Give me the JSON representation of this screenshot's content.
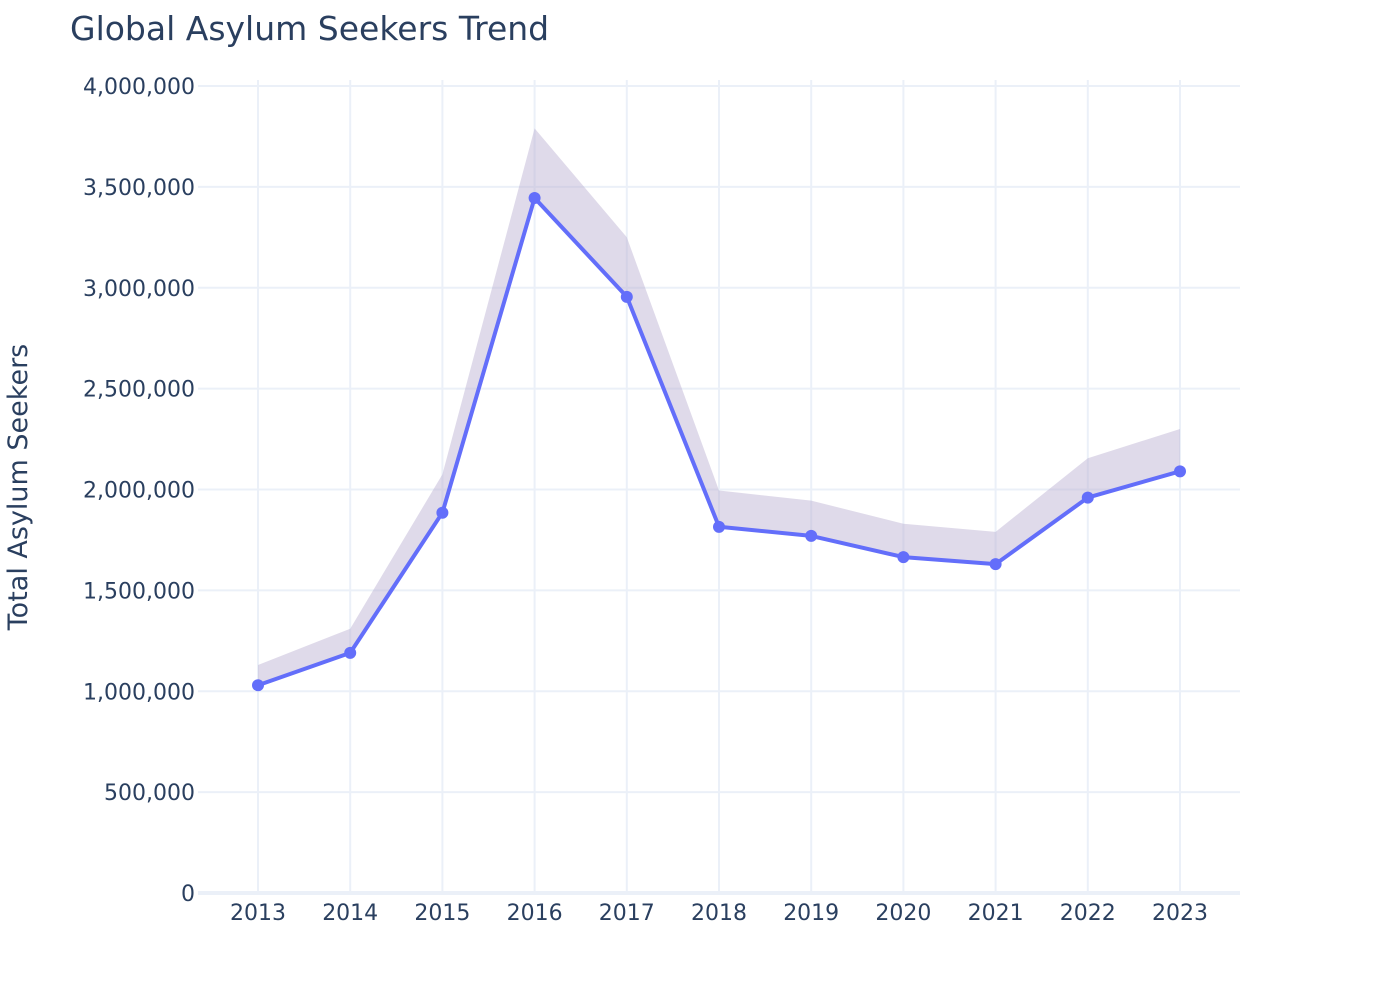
{
  "chart_data": {
    "type": "line",
    "title": "Global Asylum Seekers Trend",
    "xlabel": "",
    "ylabel": "Total Asylum Seekers",
    "x": [
      "2013",
      "2014",
      "2015",
      "2016",
      "2017",
      "2018",
      "2019",
      "2020",
      "2021",
      "2022",
      "2023"
    ],
    "ylim": [
      0,
      4000000
    ],
    "y_ticks": [
      0,
      500000,
      1000000,
      1500000,
      2000000,
      2500000,
      3000000,
      3500000,
      4000000
    ],
    "y_tick_labels": [
      "0",
      "500,000",
      "1,000,000",
      "1,500,000",
      "2,000,000",
      "2,500,000",
      "3,000,000",
      "3,500,000",
      "4,000,000"
    ],
    "grid": true,
    "legend": "none",
    "series": [
      {
        "values": [
          1030000,
          1190000,
          1885000,
          3445000,
          2955000,
          1815000,
          1770000,
          1665000,
          1630000,
          1960000,
          2090000
        ],
        "color": "#636efa",
        "markers": true
      }
    ],
    "band": {
      "upper": [
        1130000,
        1310000,
        2075000,
        3790000,
        3250000,
        1995000,
        1945000,
        1830000,
        1790000,
        2155000,
        2300000
      ],
      "lower": [
        1030000,
        1190000,
        1885000,
        3445000,
        2955000,
        1815000,
        1770000,
        1665000,
        1630000,
        1960000,
        2090000
      ],
      "color": "#b8acd0",
      "opacity": 0.45
    }
  }
}
